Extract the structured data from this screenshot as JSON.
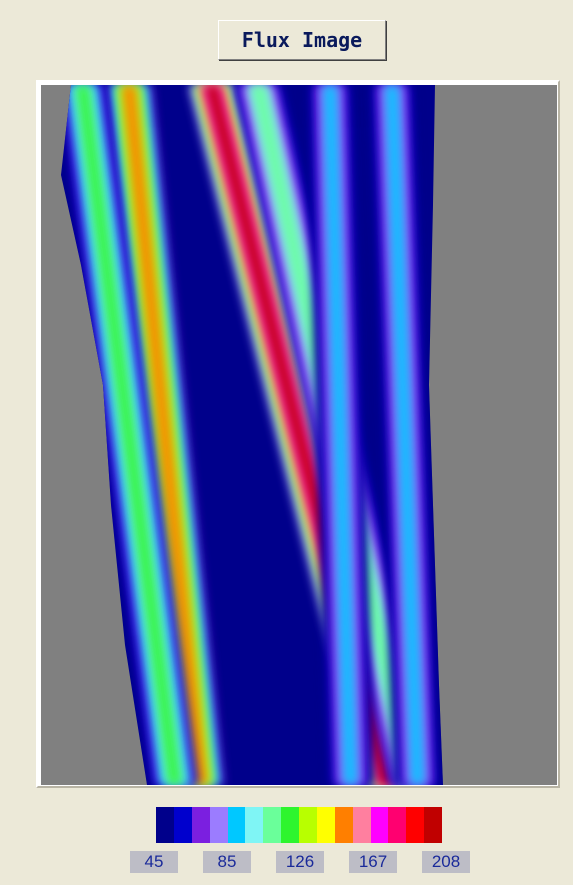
{
  "title": "Flux Image",
  "colorbar": {
    "colors": [
      "#00008b",
      "#0000cd",
      "#7b1fe0",
      "#9b7cff",
      "#00c8ff",
      "#7ff5f5",
      "#6aff9a",
      "#2ef52e",
      "#b8ff00",
      "#ffff00",
      "#ff7f00",
      "#ff7f9f",
      "#ff00ff",
      "#ff0070",
      "#ff0000",
      "#c00000"
    ],
    "ticks": [
      "45",
      "85",
      "126",
      "167",
      "208"
    ]
  },
  "chart_data": {
    "type": "heatmap",
    "title": "Flux Image",
    "xlabel": "",
    "ylabel": "",
    "value_range": [
      45,
      208
    ],
    "background_value": 45,
    "streaks": [
      {
        "x_top": 0.17,
        "x_bottom": 0.31,
        "peak": 150
      },
      {
        "x_top": 0.08,
        "x_bottom": 0.26,
        "peak": 120
      },
      {
        "x_top": 0.33,
        "x_bottom": 0.67,
        "peak": 208
      },
      {
        "x_top": 0.42,
        "x_bottom": 0.72,
        "peak": 110
      },
      {
        "x_top": 0.56,
        "x_bottom": 0.6,
        "peak": 95
      },
      {
        "x_top": 0.68,
        "x_bottom": 0.73,
        "peak": 90
      }
    ]
  }
}
